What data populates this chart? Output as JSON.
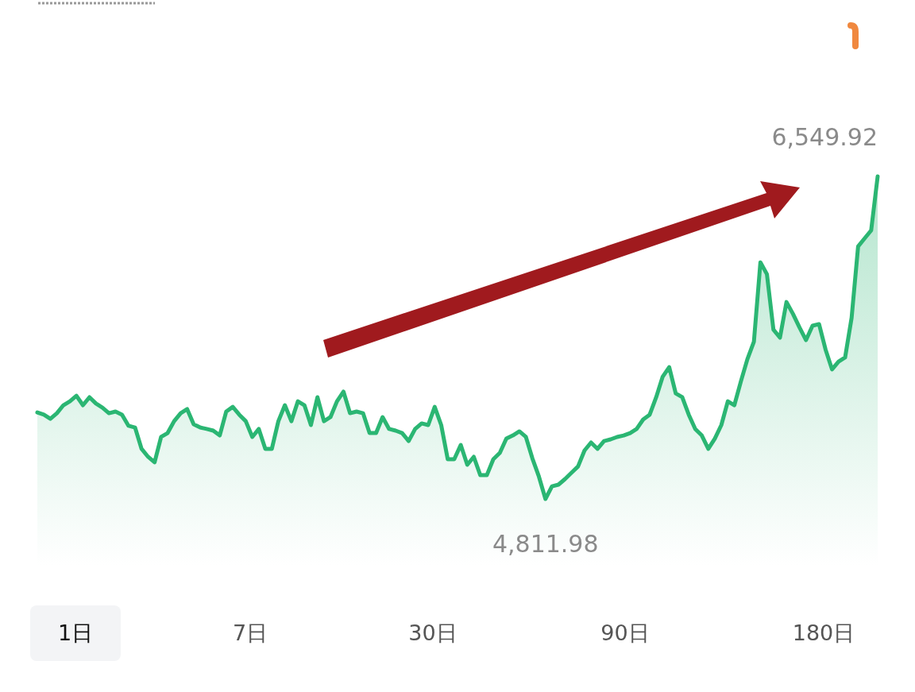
{
  "chart_data": {
    "type": "area",
    "categories": [
      null,
      null,
      null,
      null,
      null,
      null,
      null,
      null,
      null,
      null,
      null,
      null,
      null,
      null,
      null,
      null,
      null,
      null,
      null,
      null,
      null,
      null,
      null,
      null,
      null,
      null,
      null,
      null,
      null,
      null,
      null,
      null,
      null,
      null,
      null,
      null,
      null,
      null,
      null,
      null,
      null,
      null,
      null,
      null,
      null,
      null,
      null,
      null,
      null,
      null,
      null,
      null,
      null,
      null,
      null,
      null,
      null,
      null,
      null,
      null,
      null,
      null,
      null,
      null,
      null,
      null,
      null,
      null,
      null,
      null,
      null,
      null,
      null,
      null,
      null,
      null,
      null,
      null,
      null,
      null,
      null,
      null,
      null,
      null,
      null,
      null,
      null,
      null,
      null,
      null,
      null,
      null,
      null,
      null,
      null,
      null,
      null,
      null,
      null,
      null,
      null,
      null,
      null,
      null,
      null,
      null,
      null,
      null,
      null,
      null,
      null,
      null,
      null,
      null,
      null,
      null,
      null,
      null,
      null,
      null,
      null,
      null,
      null,
      null,
      null,
      null,
      null,
      null,
      null,
      null
    ],
    "series": [
      {
        "color": "#2bb673",
        "values": [
          5278,
          5266,
          5244,
          5274,
          5317,
          5338,
          5368,
          5317,
          5360,
          5326,
          5304,
          5274,
          5283,
          5266,
          5206,
          5197,
          5082,
          5039,
          5009,
          5146,
          5167,
          5231,
          5274,
          5296,
          5214,
          5197,
          5189,
          5180,
          5154,
          5283,
          5308,
          5266,
          5231,
          5146,
          5189,
          5082,
          5082,
          5231,
          5317,
          5231,
          5338,
          5317,
          5210,
          5360,
          5231,
          5253,
          5338,
          5390,
          5274,
          5283,
          5274,
          5167,
          5167,
          5253,
          5189,
          5180,
          5167,
          5124,
          5189,
          5219,
          5210,
          5308,
          5210,
          5026,
          5026,
          5103,
          4996,
          5039,
          4940,
          4940,
          5026,
          5060,
          5137,
          5154,
          5176,
          5146,
          5030,
          4932,
          4811.98,
          4880,
          4889,
          4919,
          4953,
          4987,
          5073,
          5116,
          5082,
          5124,
          5133,
          5146,
          5154,
          5167,
          5189,
          5240,
          5266,
          5360,
          5471,
          5522,
          5381,
          5360,
          5266,
          5189,
          5154,
          5082,
          5137,
          5210,
          5338,
          5317,
          5445,
          5565,
          5659,
          6087,
          6023,
          5724,
          5681,
          5873,
          5809,
          5736,
          5668,
          5745,
          5754,
          5617,
          5510,
          5552,
          5574,
          5788,
          6173,
          6216,
          6259,
          6549.92
        ],
        "value_labels": [
          null,
          null,
          null,
          null,
          null,
          null,
          null,
          null,
          null,
          null,
          null,
          null,
          null,
          null,
          null,
          null,
          null,
          null,
          null,
          null,
          null,
          null,
          null,
          null,
          null,
          null,
          null,
          null,
          null,
          null,
          null,
          null,
          null,
          null,
          null,
          null,
          null,
          null,
          null,
          null,
          null,
          null,
          null,
          null,
          null,
          null,
          null,
          null,
          null,
          null,
          null,
          null,
          null,
          null,
          null,
          null,
          null,
          null,
          null,
          null,
          null,
          null,
          null,
          null,
          null,
          null,
          null,
          null,
          null,
          null,
          null,
          null,
          null,
          null,
          null,
          null,
          null,
          null,
          "4,811.98",
          null,
          null,
          null,
          null,
          null,
          null,
          null,
          null,
          null,
          null,
          null,
          null,
          null,
          null,
          null,
          null,
          null,
          null,
          null,
          null,
          null,
          null,
          null,
          null,
          null,
          null,
          null,
          null,
          null,
          null,
          null,
          null,
          null,
          null,
          null,
          null,
          null,
          null,
          null,
          null,
          null,
          null,
          null,
          null,
          null,
          null,
          null,
          null,
          null,
          null,
          "6,549.92"
        ]
      }
    ],
    "tick_labels": false,
    "annotations": [
      "1日",
      "7日",
      "30日",
      "90日",
      "180日"
    ]
  }
}
